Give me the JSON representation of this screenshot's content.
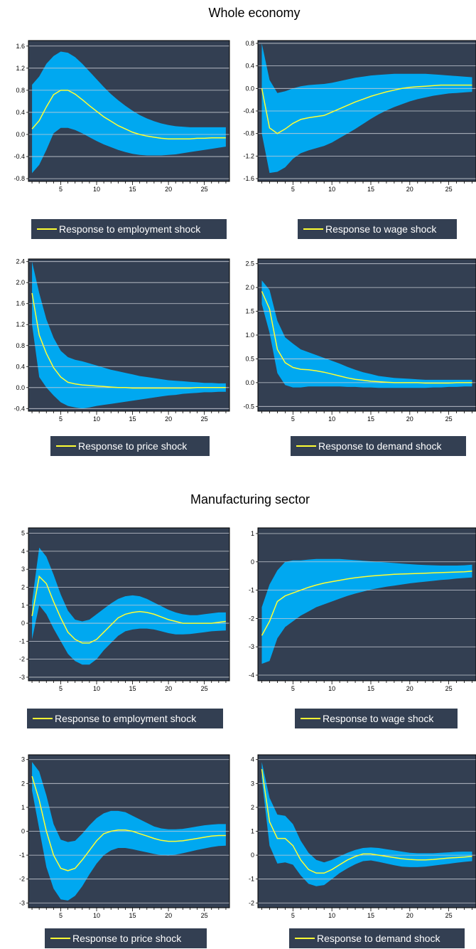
{
  "sections": [
    {
      "title": "Whole economy"
    },
    {
      "title": "Manufacturing sector"
    }
  ],
  "colors": {
    "panel_bg": "#333f52",
    "band": "#00a8f0",
    "line": "#ffff33",
    "grid": "#c8ccd4",
    "legend_bg": "#333f52"
  },
  "chart_data": [
    {
      "type": "area",
      "section": "Whole economy",
      "legend": "Response to employment shock",
      "x": [
        1,
        2,
        3,
        4,
        5,
        6,
        7,
        8,
        9,
        10,
        11,
        12,
        13,
        14,
        15,
        16,
        17,
        18,
        19,
        20,
        21,
        22,
        23,
        24,
        25,
        26,
        27,
        28
      ],
      "mean": [
        0.1,
        0.25,
        0.5,
        0.72,
        0.8,
        0.8,
        0.73,
        0.63,
        0.52,
        0.42,
        0.32,
        0.24,
        0.16,
        0.1,
        0.04,
        0.0,
        -0.03,
        -0.05,
        -0.07,
        -0.08,
        -0.08,
        -0.08,
        -0.08,
        -0.07,
        -0.07,
        -0.06,
        -0.06,
        -0.06
      ],
      "upper": [
        0.9,
        1.05,
        1.28,
        1.42,
        1.5,
        1.48,
        1.4,
        1.28,
        1.14,
        1.0,
        0.86,
        0.73,
        0.62,
        0.52,
        0.43,
        0.35,
        0.29,
        0.24,
        0.2,
        0.17,
        0.15,
        0.14,
        0.13,
        0.13,
        0.13,
        0.13,
        0.13,
        0.13
      ],
      "lower": [
        -0.7,
        -0.55,
        -0.28,
        0.02,
        0.12,
        0.12,
        0.08,
        0.02,
        -0.05,
        -0.12,
        -0.18,
        -0.23,
        -0.28,
        -0.32,
        -0.35,
        -0.37,
        -0.38,
        -0.38,
        -0.38,
        -0.37,
        -0.36,
        -0.34,
        -0.32,
        -0.3,
        -0.28,
        -0.26,
        -0.24,
        -0.22
      ],
      "xticks": [
        5,
        10,
        15,
        20,
        25
      ],
      "yticks": [
        -0.8,
        -0.4,
        0.0,
        0.4,
        0.8,
        1.2,
        1.6
      ],
      "ytick_labels": [
        "-0.8",
        "-0.4",
        "0.0",
        "0.4",
        "0.8",
        "1.2",
        "1.6"
      ],
      "xlim": [
        0.5,
        28.5
      ],
      "ylim": [
        -0.85,
        1.7
      ],
      "grid": true
    },
    {
      "type": "area",
      "section": "Whole economy",
      "legend": "Response to wage shock",
      "x": [
        1,
        2,
        3,
        4,
        5,
        6,
        7,
        8,
        9,
        10,
        11,
        12,
        13,
        14,
        15,
        16,
        17,
        18,
        19,
        20,
        21,
        22,
        23,
        24,
        25,
        26,
        27,
        28
      ],
      "mean": [
        0.0,
        -0.7,
        -0.8,
        -0.72,
        -0.62,
        -0.55,
        -0.52,
        -0.5,
        -0.48,
        -0.42,
        -0.36,
        -0.3,
        -0.24,
        -0.19,
        -0.14,
        -0.1,
        -0.06,
        -0.03,
        0.0,
        0.02,
        0.03,
        0.04,
        0.05,
        0.06,
        0.06,
        0.06,
        0.06,
        0.06
      ],
      "upper": [
        0.8,
        0.15,
        -0.08,
        -0.05,
        0.0,
        0.04,
        0.06,
        0.07,
        0.08,
        0.1,
        0.13,
        0.16,
        0.19,
        0.21,
        0.23,
        0.24,
        0.25,
        0.26,
        0.26,
        0.26,
        0.26,
        0.26,
        0.25,
        0.24,
        0.23,
        0.22,
        0.21,
        0.2
      ],
      "lower": [
        -0.8,
        -1.5,
        -1.48,
        -1.4,
        -1.25,
        -1.15,
        -1.1,
        -1.06,
        -1.02,
        -0.96,
        -0.88,
        -0.8,
        -0.72,
        -0.63,
        -0.54,
        -0.46,
        -0.39,
        -0.33,
        -0.28,
        -0.23,
        -0.19,
        -0.16,
        -0.13,
        -0.11,
        -0.09,
        -0.08,
        -0.07,
        -0.06
      ],
      "xticks": [
        5,
        10,
        15,
        20,
        25
      ],
      "yticks": [
        -1.6,
        -1.2,
        -0.8,
        -0.4,
        0.0,
        0.4,
        0.8
      ],
      "ytick_labels": [
        "-1.6",
        "-1.2",
        "-0.8",
        "-0.4",
        "0.0",
        "0.4",
        "0.8"
      ],
      "xlim": [
        0.5,
        28.5
      ],
      "ylim": [
        -1.65,
        0.85
      ],
      "grid": true
    },
    {
      "type": "area",
      "section": "Whole economy",
      "legend": "Response to price shock",
      "x": [
        1,
        2,
        3,
        4,
        5,
        6,
        7,
        8,
        9,
        10,
        11,
        12,
        13,
        14,
        15,
        16,
        17,
        18,
        19,
        20,
        21,
        22,
        23,
        24,
        25,
        26,
        27,
        28
      ],
      "mean": [
        1.8,
        1.0,
        0.65,
        0.38,
        0.2,
        0.1,
        0.07,
        0.05,
        0.04,
        0.03,
        0.02,
        0.01,
        0.0,
        0.0,
        -0.01,
        -0.01,
        -0.01,
        -0.01,
        -0.01,
        -0.01,
        -0.01,
        -0.01,
        -0.01,
        0.0,
        0.0,
        0.0,
        0.0,
        0.0
      ],
      "upper": [
        2.4,
        1.8,
        1.3,
        0.95,
        0.7,
        0.58,
        0.53,
        0.5,
        0.46,
        0.42,
        0.38,
        0.34,
        0.31,
        0.28,
        0.25,
        0.22,
        0.2,
        0.18,
        0.16,
        0.14,
        0.13,
        0.12,
        0.11,
        0.1,
        0.09,
        0.09,
        0.08,
        0.08
      ],
      "lower": [
        1.2,
        0.2,
        0.0,
        -0.15,
        -0.28,
        -0.35,
        -0.38,
        -0.4,
        -0.38,
        -0.35,
        -0.33,
        -0.31,
        -0.29,
        -0.27,
        -0.25,
        -0.23,
        -0.21,
        -0.19,
        -0.17,
        -0.15,
        -0.14,
        -0.12,
        -0.11,
        -0.1,
        -0.09,
        -0.09,
        -0.08,
        -0.08
      ],
      "xticks": [
        5,
        10,
        15,
        20,
        25
      ],
      "yticks": [
        -0.4,
        0.0,
        0.4,
        0.8,
        1.2,
        1.6,
        2.0,
        2.4
      ],
      "ytick_labels": [
        "-0.4",
        "0.0",
        "0.4",
        "0.8",
        "1.2",
        "1.6",
        "2.0",
        "2.4"
      ],
      "xlim": [
        0.5,
        28.5
      ],
      "ylim": [
        -0.45,
        2.45
      ],
      "grid": true
    },
    {
      "type": "area",
      "section": "Whole economy",
      "legend": "Response to demand shock",
      "x": [
        1,
        2,
        3,
        4,
        5,
        6,
        7,
        8,
        9,
        10,
        11,
        12,
        13,
        14,
        15,
        16,
        17,
        18,
        19,
        20,
        21,
        22,
        23,
        24,
        25,
        26,
        27,
        28
      ],
      "mean": [
        1.92,
        1.55,
        0.7,
        0.42,
        0.32,
        0.28,
        0.27,
        0.25,
        0.22,
        0.18,
        0.14,
        0.1,
        0.07,
        0.05,
        0.03,
        0.02,
        0.01,
        0.0,
        0.0,
        0.0,
        0.0,
        -0.01,
        -0.01,
        -0.01,
        -0.01,
        0.0,
        0.0,
        0.0
      ],
      "upper": [
        2.15,
        1.95,
        1.3,
        0.95,
        0.82,
        0.7,
        0.64,
        0.58,
        0.52,
        0.46,
        0.4,
        0.33,
        0.27,
        0.22,
        0.18,
        0.14,
        0.12,
        0.1,
        0.09,
        0.08,
        0.07,
        0.06,
        0.06,
        0.06,
        0.06,
        0.06,
        0.06,
        0.06
      ],
      "lower": [
        1.65,
        1.05,
        0.2,
        -0.05,
        -0.1,
        -0.1,
        -0.08,
        -0.08,
        -0.08,
        -0.08,
        -0.08,
        -0.09,
        -0.09,
        -0.1,
        -0.1,
        -0.11,
        -0.11,
        -0.11,
        -0.11,
        -0.11,
        -0.11,
        -0.11,
        -0.1,
        -0.1,
        -0.09,
        -0.09,
        -0.08,
        -0.08
      ],
      "xticks": [
        5,
        10,
        15,
        20,
        25
      ],
      "yticks": [
        -0.5,
        0.0,
        0.5,
        1.0,
        1.5,
        2.0,
        2.5
      ],
      "ytick_labels": [
        "-0.5",
        "0.0",
        "0.5",
        "1.0",
        "1.5",
        "2.0",
        "2.5"
      ],
      "xlim": [
        0.5,
        28.5
      ],
      "ylim": [
        -0.6,
        2.6
      ],
      "grid": true
    },
    {
      "type": "area",
      "section": "Manufacturing sector",
      "legend": "Response to employment shock",
      "x": [
        1,
        2,
        3,
        4,
        5,
        6,
        7,
        8,
        9,
        10,
        11,
        12,
        13,
        14,
        15,
        16,
        17,
        18,
        19,
        20,
        21,
        22,
        23,
        24,
        25,
        26,
        27,
        28
      ],
      "mean": [
        0.4,
        2.6,
        2.2,
        1.2,
        0.3,
        -0.5,
        -0.9,
        -1.1,
        -1.1,
        -0.9,
        -0.5,
        -0.1,
        0.3,
        0.5,
        0.6,
        0.65,
        0.6,
        0.5,
        0.35,
        0.2,
        0.1,
        0.0,
        0.0,
        0.0,
        0.0,
        0.0,
        0.05,
        0.1
      ],
      "upper": [
        1.2,
        4.2,
        3.7,
        2.7,
        1.6,
        0.7,
        0.2,
        0.1,
        0.2,
        0.5,
        0.8,
        1.1,
        1.35,
        1.5,
        1.55,
        1.5,
        1.35,
        1.15,
        0.95,
        0.75,
        0.6,
        0.5,
        0.45,
        0.45,
        0.5,
        0.55,
        0.6,
        0.6
      ],
      "lower": [
        -0.9,
        1.0,
        0.5,
        -0.3,
        -1.0,
        -1.7,
        -2.1,
        -2.3,
        -2.3,
        -2.0,
        -1.5,
        -1.1,
        -0.7,
        -0.45,
        -0.35,
        -0.3,
        -0.3,
        -0.35,
        -0.45,
        -0.55,
        -0.62,
        -0.62,
        -0.6,
        -0.55,
        -0.5,
        -0.45,
        -0.42,
        -0.4
      ],
      "xticks": [
        5,
        10,
        15,
        20,
        25
      ],
      "yticks": [
        -3,
        -2,
        -1,
        0,
        1,
        2,
        3,
        4,
        5
      ],
      "ytick_labels": [
        "-3",
        "-2",
        "-1",
        "0",
        "1",
        "2",
        "3",
        "4",
        "5"
      ],
      "xlim": [
        0.5,
        28.5
      ],
      "ylim": [
        -3.2,
        5.3
      ],
      "grid": true
    },
    {
      "type": "area",
      "section": "Manufacturing sector",
      "legend": "Response to wage shock",
      "x": [
        1,
        2,
        3,
        4,
        5,
        6,
        7,
        8,
        9,
        10,
        11,
        12,
        13,
        14,
        15,
        16,
        17,
        18,
        19,
        20,
        21,
        22,
        23,
        24,
        25,
        26,
        27,
        28
      ],
      "mean": [
        -2.6,
        -2.1,
        -1.4,
        -1.2,
        -1.1,
        -1.0,
        -0.9,
        -0.82,
        -0.75,
        -0.7,
        -0.65,
        -0.6,
        -0.56,
        -0.53,
        -0.5,
        -0.48,
        -0.46,
        -0.44,
        -0.43,
        -0.42,
        -0.41,
        -0.4,
        -0.39,
        -0.38,
        -0.37,
        -0.36,
        -0.35,
        -0.33
      ],
      "upper": [
        -1.6,
        -0.8,
        -0.3,
        0.0,
        0.05,
        0.05,
        0.08,
        0.1,
        0.1,
        0.1,
        0.1,
        0.08,
        0.06,
        0.04,
        0.02,
        0.0,
        -0.02,
        -0.04,
        -0.06,
        -0.08,
        -0.1,
        -0.11,
        -0.12,
        -0.13,
        -0.13,
        -0.13,
        -0.12,
        -0.1
      ],
      "lower": [
        -3.6,
        -3.5,
        -2.7,
        -2.3,
        -2.1,
        -1.9,
        -1.75,
        -1.6,
        -1.5,
        -1.4,
        -1.3,
        -1.2,
        -1.12,
        -1.05,
        -0.98,
        -0.93,
        -0.88,
        -0.84,
        -0.8,
        -0.76,
        -0.73,
        -0.7,
        -0.67,
        -0.64,
        -0.62,
        -0.59,
        -0.57,
        -0.55
      ],
      "xticks": [
        5,
        10,
        15,
        20,
        25
      ],
      "yticks": [
        -4,
        -3,
        -2,
        -1,
        0,
        1
      ],
      "ytick_labels": [
        "-4",
        "-3",
        "-2",
        "-1",
        "0",
        "1"
      ],
      "xlim": [
        0.5,
        28.5
      ],
      "ylim": [
        -4.2,
        1.2
      ],
      "grid": true
    },
    {
      "type": "area",
      "section": "Manufacturing sector",
      "legend": "Response to price shock",
      "x": [
        1,
        2,
        3,
        4,
        5,
        6,
        7,
        8,
        9,
        10,
        11,
        12,
        13,
        14,
        15,
        16,
        17,
        18,
        19,
        20,
        21,
        22,
        23,
        24,
        25,
        26,
        27,
        28
      ],
      "mean": [
        2.3,
        1.3,
        0.0,
        -1.0,
        -1.55,
        -1.65,
        -1.55,
        -1.2,
        -0.8,
        -0.4,
        -0.1,
        0.0,
        0.05,
        0.05,
        0.0,
        -0.1,
        -0.2,
        -0.3,
        -0.38,
        -0.42,
        -0.42,
        -0.4,
        -0.35,
        -0.3,
        -0.25,
        -0.2,
        -0.18,
        -0.18
      ],
      "upper": [
        2.9,
        2.5,
        1.5,
        0.3,
        -0.35,
        -0.45,
        -0.4,
        -0.1,
        0.25,
        0.55,
        0.75,
        0.85,
        0.85,
        0.8,
        0.65,
        0.5,
        0.35,
        0.2,
        0.12,
        0.08,
        0.08,
        0.1,
        0.15,
        0.2,
        0.25,
        0.28,
        0.3,
        0.3
      ],
      "lower": [
        1.7,
        0.1,
        -1.5,
        -2.4,
        -2.85,
        -2.9,
        -2.7,
        -2.3,
        -1.8,
        -1.35,
        -1.0,
        -0.8,
        -0.7,
        -0.7,
        -0.75,
        -0.82,
        -0.88,
        -0.95,
        -1.0,
        -1.02,
        -0.98,
        -0.92,
        -0.85,
        -0.78,
        -0.72,
        -0.66,
        -0.62,
        -0.6
      ],
      "xticks": [
        5,
        10,
        15,
        20,
        25
      ],
      "yticks": [
        -3,
        -2,
        -1,
        0,
        1,
        2,
        3
      ],
      "ytick_labels": [
        "-3",
        "-2",
        "-1",
        "0",
        "1",
        "2",
        "3"
      ],
      "xlim": [
        0.5,
        28.5
      ],
      "ylim": [
        -3.2,
        3.2
      ],
      "grid": true
    },
    {
      "type": "area",
      "section": "Manufacturing sector",
      "legend": "Response to demand shock",
      "x": [
        1,
        2,
        3,
        4,
        5,
        6,
        7,
        8,
        9,
        10,
        11,
        12,
        13,
        14,
        15,
        16,
        17,
        18,
        19,
        20,
        21,
        22,
        23,
        24,
        25,
        26,
        27,
        28
      ],
      "mean": [
        3.6,
        1.4,
        0.7,
        0.7,
        0.4,
        -0.2,
        -0.6,
        -0.75,
        -0.75,
        -0.6,
        -0.4,
        -0.2,
        -0.05,
        0.05,
        0.05,
        0.0,
        -0.05,
        -0.1,
        -0.15,
        -0.18,
        -0.2,
        -0.2,
        -0.18,
        -0.15,
        -0.12,
        -0.1,
        -0.08,
        -0.05
      ],
      "upper": [
        3.9,
        2.4,
        1.7,
        1.65,
        1.3,
        0.6,
        0.1,
        -0.2,
        -0.3,
        -0.2,
        -0.05,
        0.1,
        0.22,
        0.3,
        0.32,
        0.3,
        0.25,
        0.2,
        0.15,
        0.1,
        0.08,
        0.08,
        0.08,
        0.1,
        0.12,
        0.14,
        0.15,
        0.15
      ],
      "lower": [
        3.2,
        0.4,
        -0.35,
        -0.3,
        -0.4,
        -0.85,
        -1.2,
        -1.3,
        -1.25,
        -1.0,
        -0.75,
        -0.55,
        -0.38,
        -0.25,
        -0.22,
        -0.28,
        -0.35,
        -0.42,
        -0.48,
        -0.5,
        -0.5,
        -0.48,
        -0.44,
        -0.4,
        -0.36,
        -0.32,
        -0.28,
        -0.25
      ],
      "xticks": [
        5,
        10,
        15,
        20,
        25
      ],
      "yticks": [
        -2,
        -1,
        0,
        1,
        2,
        3,
        4
      ],
      "ytick_labels": [
        "-2",
        "-1",
        "0",
        "1",
        "2",
        "3",
        "4"
      ],
      "xlim": [
        0.5,
        28.5
      ],
      "ylim": [
        -2.2,
        4.2
      ],
      "grid": true
    }
  ]
}
